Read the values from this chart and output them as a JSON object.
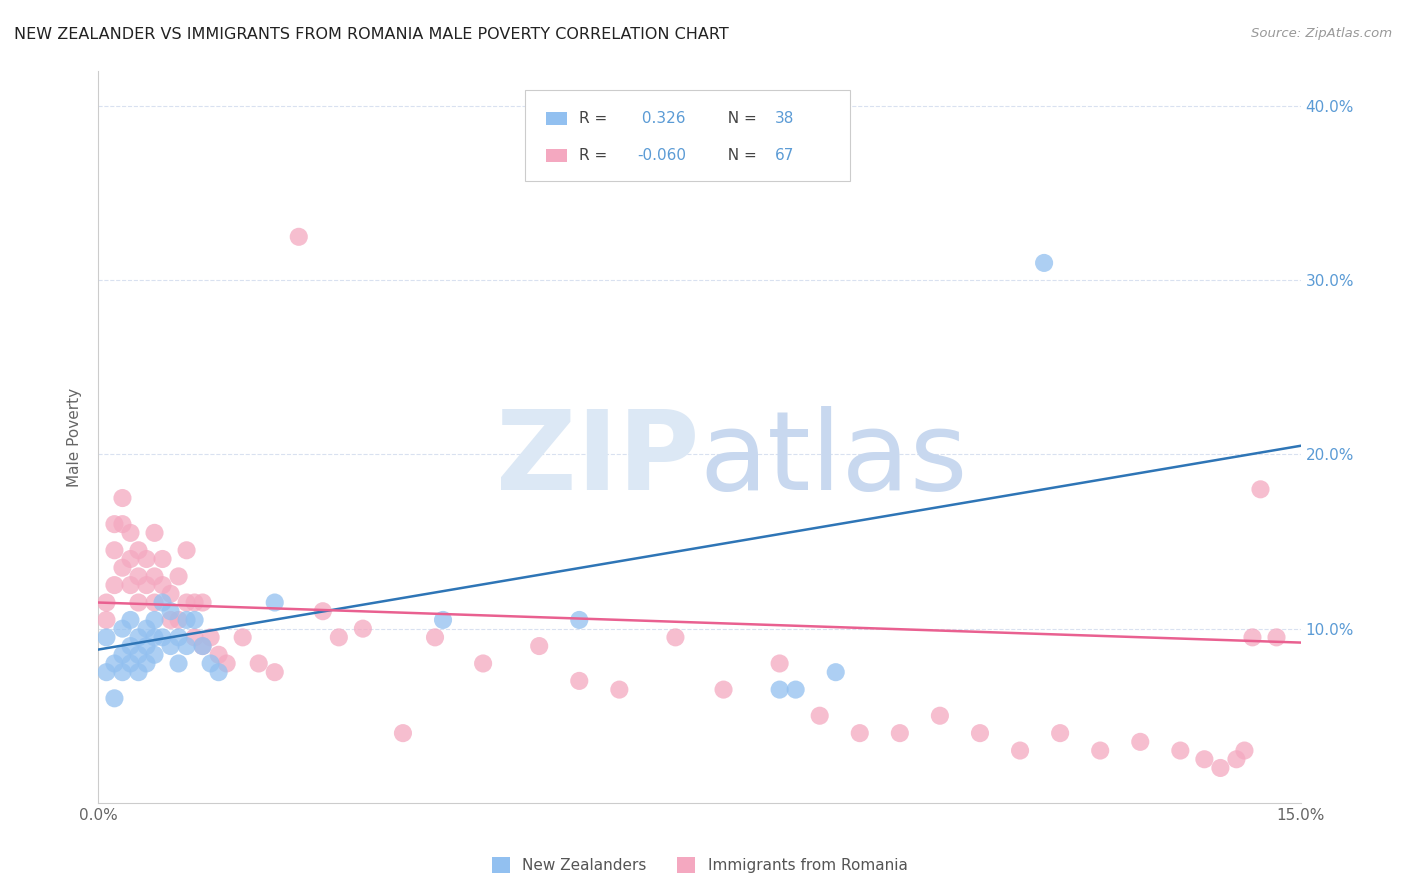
{
  "title": "NEW ZEALANDER VS IMMIGRANTS FROM ROMANIA MALE POVERTY CORRELATION CHART",
  "source": "Source: ZipAtlas.com",
  "ylabel": "Male Poverty",
  "xlim": [
    0.0,
    0.15
  ],
  "ylim": [
    0.0,
    0.42
  ],
  "right_ytick_color": "#5b9bd5",
  "nz_color": "#92c0f0",
  "rom_color": "#f4a8c0",
  "nz_line_color": "#2e75b6",
  "rom_line_color": "#e96090",
  "grid_color": "#d9e1f0",
  "background_color": "#ffffff",
  "nz_scatter_x": [
    0.001,
    0.001,
    0.002,
    0.002,
    0.003,
    0.003,
    0.003,
    0.004,
    0.004,
    0.004,
    0.005,
    0.005,
    0.005,
    0.006,
    0.006,
    0.006,
    0.007,
    0.007,
    0.007,
    0.008,
    0.008,
    0.009,
    0.009,
    0.01,
    0.01,
    0.011,
    0.011,
    0.012,
    0.013,
    0.014,
    0.015,
    0.022,
    0.043,
    0.06,
    0.085,
    0.087,
    0.092,
    0.118
  ],
  "nz_scatter_y": [
    0.095,
    0.075,
    0.08,
    0.06,
    0.1,
    0.085,
    0.075,
    0.105,
    0.09,
    0.08,
    0.095,
    0.085,
    0.075,
    0.1,
    0.09,
    0.08,
    0.105,
    0.095,
    0.085,
    0.115,
    0.095,
    0.11,
    0.09,
    0.095,
    0.08,
    0.105,
    0.09,
    0.105,
    0.09,
    0.08,
    0.075,
    0.115,
    0.105,
    0.105,
    0.065,
    0.065,
    0.075,
    0.31
  ],
  "rom_scatter_x": [
    0.001,
    0.001,
    0.002,
    0.002,
    0.002,
    0.003,
    0.003,
    0.003,
    0.004,
    0.004,
    0.004,
    0.005,
    0.005,
    0.005,
    0.006,
    0.006,
    0.007,
    0.007,
    0.007,
    0.008,
    0.008,
    0.009,
    0.009,
    0.01,
    0.01,
    0.011,
    0.011,
    0.012,
    0.012,
    0.013,
    0.013,
    0.014,
    0.015,
    0.016,
    0.018,
    0.02,
    0.022,
    0.025,
    0.028,
    0.03,
    0.033,
    0.038,
    0.042,
    0.048,
    0.055,
    0.06,
    0.065,
    0.072,
    0.078,
    0.085,
    0.09,
    0.095,
    0.1,
    0.105,
    0.11,
    0.115,
    0.12,
    0.125,
    0.13,
    0.135,
    0.138,
    0.14,
    0.142,
    0.143,
    0.144,
    0.145,
    0.147
  ],
  "rom_scatter_y": [
    0.115,
    0.105,
    0.16,
    0.145,
    0.125,
    0.175,
    0.16,
    0.135,
    0.155,
    0.14,
    0.125,
    0.145,
    0.13,
    0.115,
    0.14,
    0.125,
    0.155,
    0.13,
    0.115,
    0.14,
    0.125,
    0.12,
    0.105,
    0.13,
    0.105,
    0.145,
    0.115,
    0.115,
    0.095,
    0.115,
    0.09,
    0.095,
    0.085,
    0.08,
    0.095,
    0.08,
    0.075,
    0.325,
    0.11,
    0.095,
    0.1,
    0.04,
    0.095,
    0.08,
    0.09,
    0.07,
    0.065,
    0.095,
    0.065,
    0.08,
    0.05,
    0.04,
    0.04,
    0.05,
    0.04,
    0.03,
    0.04,
    0.03,
    0.035,
    0.03,
    0.025,
    0.02,
    0.025,
    0.03,
    0.095,
    0.18,
    0.095
  ],
  "nz_trendline_x": [
    0.0,
    0.15
  ],
  "nz_trend_y": [
    0.088,
    0.205
  ],
  "rom_trendline_x": [
    0.0,
    0.15
  ],
  "rom_trend_y": [
    0.115,
    0.092
  ],
  "legend_r1_label": "R = ",
  "legend_r1_val": " 0.326",
  "legend_n1_label": "N = ",
  "legend_n1_val": "38",
  "legend_r2_label": "R = ",
  "legend_r2_val": "-0.060",
  "legend_n2_label": "N = ",
  "legend_n2_val": "67",
  "legend_color1": "#92c0f0",
  "legend_color2": "#f4a8c0",
  "legend_val_color": "#5b9bd5",
  "bottom_legend_nz": "New Zealanders",
  "bottom_legend_rom": "Immigrants from Romania"
}
